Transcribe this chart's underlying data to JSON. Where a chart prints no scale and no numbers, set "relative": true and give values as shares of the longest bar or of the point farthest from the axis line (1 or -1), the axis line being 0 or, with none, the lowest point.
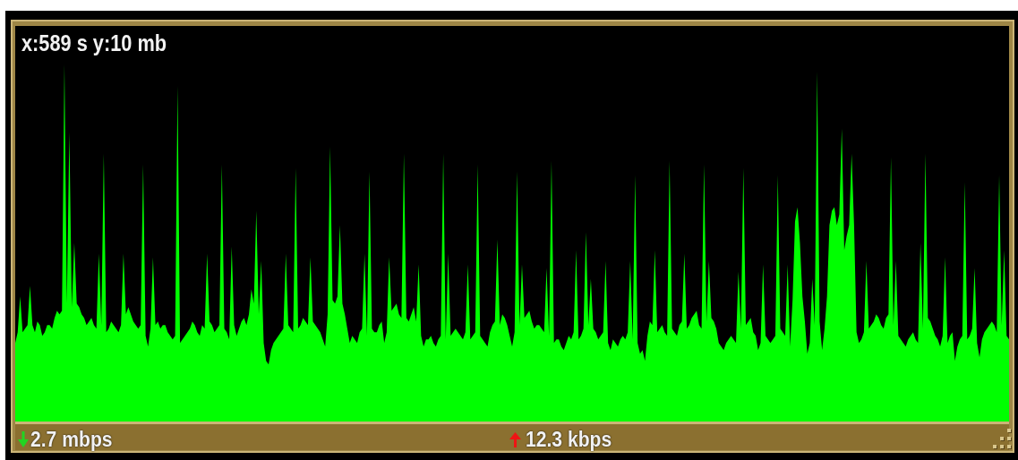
{
  "chart_data": {
    "type": "area",
    "relative": true,
    "marker": "none",
    "color": "#00ff00",
    "annotations": [
      "x:589 s y:10 mb",
      "2.7 mbps",
      "12.3 kbps"
    ],
    "categories": [
      null,
      null,
      null,
      null,
      null,
      null,
      null,
      null,
      null,
      null,
      null,
      null,
      null,
      null,
      null,
      null,
      null,
      null,
      null,
      null,
      null,
      null,
      null,
      null,
      null,
      null,
      null,
      null,
      null,
      null,
      null,
      null,
      null,
      null,
      null,
      null,
      null,
      null,
      null,
      null,
      null,
      null,
      null,
      null,
      null,
      null,
      null,
      null,
      null,
      null,
      null,
      null,
      null,
      null,
      null,
      null,
      null,
      null,
      null,
      null,
      null,
      null,
      null,
      null,
      null,
      null,
      null,
      null,
      null,
      null,
      null,
      null,
      null,
      null,
      null,
      null,
      null,
      null,
      null,
      null,
      null,
      null,
      null,
      null,
      null,
      null,
      null,
      null,
      null,
      null,
      null,
      null,
      null,
      null,
      null,
      null,
      null,
      null,
      null,
      null,
      null,
      null,
      null,
      null,
      null,
      null,
      null,
      null,
      null,
      null,
      null,
      null,
      null,
      null,
      null,
      null,
      null,
      null,
      null,
      null,
      null,
      null,
      null,
      null,
      null,
      null,
      null,
      null,
      null,
      null,
      null,
      null,
      null,
      null,
      null,
      null,
      null,
      null,
      null,
      null,
      null,
      null,
      null,
      null,
      null,
      null,
      null,
      null,
      null,
      null,
      null,
      null,
      null,
      null,
      null,
      null,
      null,
      null,
      null,
      null,
      null,
      null,
      null,
      null,
      null,
      null,
      null,
      null,
      null,
      null,
      null,
      null,
      null,
      null,
      null,
      null,
      null,
      null,
      null,
      null,
      null,
      null,
      null,
      null,
      null,
      null,
      null,
      null,
      null,
      null,
      null,
      null,
      null,
      null,
      null,
      null,
      null,
      null,
      null,
      null,
      null,
      null,
      null,
      null,
      null,
      null,
      null,
      null,
      null,
      null,
      null,
      null,
      null,
      null,
      null,
      null,
      null,
      null,
      null,
      null,
      null,
      null,
      null,
      null,
      null,
      null,
      null,
      null,
      null,
      null,
      null,
      null,
      null,
      null,
      null,
      null,
      null,
      null,
      null,
      null,
      null,
      null,
      null,
      null,
      null,
      null,
      null,
      null,
      null,
      null,
      null,
      null,
      null,
      null,
      null,
      null,
      null,
      null,
      null,
      null,
      null,
      null,
      null,
      null,
      null,
      null,
      null,
      null,
      null,
      null,
      null,
      null,
      null,
      null,
      null,
      null,
      null,
      null,
      null,
      null,
      null,
      null,
      null,
      null,
      null,
      null,
      null,
      null,
      null,
      null,
      null,
      null,
      null,
      null,
      null,
      null,
      null,
      null,
      null,
      null,
      null,
      null,
      null,
      null,
      null,
      null,
      null,
      null,
      null,
      null,
      null,
      null,
      null,
      null,
      null,
      null,
      null,
      null,
      null,
      null,
      null,
      null,
      null,
      null,
      null,
      null,
      null,
      null,
      null,
      null,
      null,
      null,
      null,
      null,
      null,
      null,
      null,
      null,
      null,
      null,
      null,
      null,
      null,
      null,
      null,
      null,
      null,
      null,
      null,
      null,
      null,
      null,
      null,
      null,
      null,
      null,
      null,
      null,
      null,
      null,
      null,
      null,
      null,
      null,
      null,
      null,
      null,
      null,
      null,
      null,
      null,
      null,
      null,
      null,
      null,
      null,
      null,
      null,
      null,
      null,
      null,
      null,
      null,
      null,
      null,
      null,
      null,
      null,
      null,
      null,
      null,
      null,
      null,
      null,
      null,
      null,
      null,
      null,
      null,
      null,
      null,
      null,
      null,
      null,
      null
    ],
    "values": [
      0.22,
      0.25,
      0.35,
      0.25,
      0.26,
      0.27,
      0.38,
      0.27,
      0.25,
      0.28,
      0.27,
      0.24,
      0.25,
      0.27,
      0.27,
      0.26,
      0.29,
      0.31,
      0.3,
      0.31,
      1,
      0.33,
      0.81,
      0.32,
      0.5,
      0.33,
      0.32,
      0.3,
      0.29,
      0.27,
      0.28,
      0.29,
      0.27,
      0.26,
      0.47,
      0.27,
      0.75,
      0.25,
      0.26,
      0.28,
      0.27,
      0.26,
      0.25,
      0.27,
      0.47,
      0.3,
      0.32,
      0.3,
      0.28,
      0.27,
      0.26,
      0.27,
      0.72,
      0.24,
      0.21,
      0.26,
      0.46,
      0.27,
      0.28,
      0.26,
      0.27,
      0.27,
      0.25,
      0.24,
      0.23,
      0.24,
      0.94,
      0.22,
      0.23,
      0.24,
      0.25,
      0.26,
      0.28,
      0.27,
      0.25,
      0.24,
      0.27,
      0.26,
      0.47,
      0.28,
      0.27,
      0.25,
      0.26,
      0.27,
      0.72,
      0.26,
      0.25,
      0.23,
      0.49,
      0.27,
      0.24,
      0.26,
      0.28,
      0.29,
      0.27,
      0.3,
      0.37,
      0.33,
      0.59,
      0.3,
      0.45,
      0.22,
      0.17,
      0.16,
      0.2,
      0.22,
      0.23,
      0.24,
      0.25,
      0.26,
      0.47,
      0.27,
      0.26,
      0.25,
      0.71,
      0.26,
      0.27,
      0.29,
      0.28,
      0.27,
      0.46,
      0.28,
      0.27,
      0.26,
      0.25,
      0.23,
      0.21,
      0.3,
      0.77,
      0.34,
      0.33,
      0.35,
      0.55,
      0.33,
      0.3,
      0.26,
      0.22,
      0.24,
      0.23,
      0.22,
      0.25,
      0.26,
      0.47,
      0.24,
      0.7,
      0.26,
      0.25,
      0.25,
      0.27,
      0.28,
      0.22,
      0.25,
      0.46,
      0.31,
      0.32,
      0.33,
      0.3,
      0.29,
      0.75,
      0.29,
      0.28,
      0.3,
      0.32,
      0.28,
      0.44,
      0.24,
      0.21,
      0.23,
      0.23,
      0.24,
      0.22,
      0.21,
      0.23,
      0.24,
      0.75,
      0.23,
      0.47,
      0.24,
      0.25,
      0.26,
      0.25,
      0.24,
      0.23,
      0.25,
      0.44,
      0.23,
      0.24,
      0.25,
      0.72,
      0.24,
      0.23,
      0.22,
      0.21,
      0.25,
      0.27,
      0.28,
      0.51,
      0.27,
      0.3,
      0.29,
      0.27,
      0.24,
      0.21,
      0.25,
      0.7,
      0.27,
      0.44,
      0.29,
      0.3,
      0.31,
      0.28,
      0.26,
      0.27,
      0.27,
      0.26,
      0.25,
      0.43,
      0.24,
      0.73,
      0.22,
      0.23,
      0.23,
      0.21,
      0.2,
      0.22,
      0.24,
      0.23,
      0.25,
      0.48,
      0.23,
      0.24,
      0.26,
      0.53,
      0.27,
      0.4,
      0.26,
      0.25,
      0.23,
      0.24,
      0.25,
      0.45,
      0.22,
      0.2,
      0.23,
      0.22,
      0.21,
      0.23,
      0.24,
      0.23,
      0.25,
      0.45,
      0.23,
      0.69,
      0.22,
      0.19,
      0.2,
      0.17,
      0.24,
      0.28,
      0.27,
      0.48,
      0.25,
      0.26,
      0.27,
      0.25,
      0.24,
      0.73,
      0.26,
      0.25,
      0.24,
      0.27,
      0.28,
      0.47,
      0.26,
      0.27,
      0.29,
      0.3,
      0.31,
      0.27,
      0.26,
      0.72,
      0.28,
      0.45,
      0.29,
      0.28,
      0.26,
      0.22,
      0.21,
      0.2,
      0.22,
      0.23,
      0.24,
      0.23,
      0.22,
      0.42,
      0.26,
      0.71,
      0.27,
      0.28,
      0.29,
      0.25,
      0.24,
      0.2,
      0.22,
      0.44,
      0.24,
      0.23,
      0.22,
      0.23,
      0.24,
      0.69,
      0.26,
      0.25,
      0.24,
      0.44,
      0.21,
      0.34,
      0.56,
      0.6,
      0.5,
      0.35,
      0.28,
      0.19,
      0.22,
      0.4,
      0.27,
      0.98,
      0.28,
      0.2,
      0.26,
      0.35,
      0.55,
      0.59,
      0.6,
      0.55,
      0.58,
      0.82,
      0.48,
      0.52,
      0.55,
      0.75,
      0.55,
      0.25,
      0.22,
      0.23,
      0.25,
      0.45,
      0.26,
      0.27,
      0.28,
      0.3,
      0.29,
      0.27,
      0.26,
      0.29,
      0.3,
      0.74,
      0.27,
      0.45,
      0.24,
      0.23,
      0.22,
      0.21,
      0.23,
      0.24,
      0.25,
      0.23,
      0.22,
      0.5,
      0.26,
      0.75,
      0.29,
      0.28,
      0.26,
      0.24,
      0.23,
      0.21,
      0.24,
      0.46,
      0.22,
      0.24,
      0.25,
      0.17,
      0.21,
      0.23,
      0.24,
      0.67,
      0.23,
      0.24,
      0.26,
      0.43,
      0.22,
      0.18,
      0.23,
      0.25,
      0.26,
      0.27,
      0.28,
      0.27,
      0.25,
      0.69,
      0.27,
      0.48,
      0.24,
      0.23
    ]
  }
}
